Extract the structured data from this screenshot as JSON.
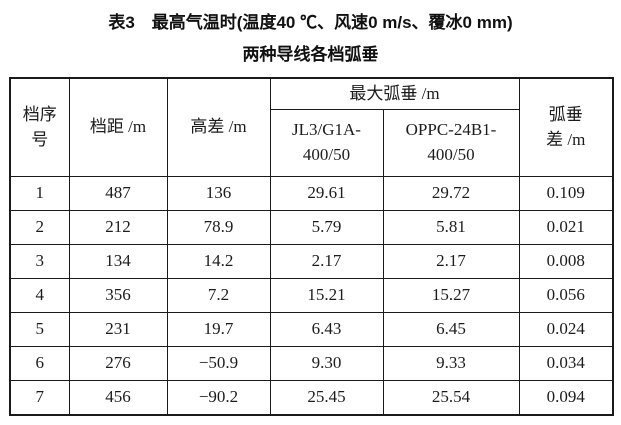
{
  "page": {
    "background": "#ffffff",
    "text_color": "#1c1c1c",
    "border_color": "#1a1a1a"
  },
  "title": {
    "line1": "表3　最高气温时(温度40 ℃、风速0 m/s、覆冰0 mm)",
    "line2": "两种导线各档弧垂"
  },
  "table": {
    "header": {
      "span_no_line1": "档序",
      "span_no_line2": "号",
      "span_length": "档距 /m",
      "height_diff": "高差 /m",
      "max_sag": "最大弧垂 /m",
      "conductor1_line1": "JL3/G1A-",
      "conductor1_line2": "400/50",
      "conductor2_line1": "OPPC-24B1-",
      "conductor2_line2": "400/50",
      "sag_diff_line1": "弧垂",
      "sag_diff_line2": "差 /m"
    },
    "rows": [
      [
        "1",
        "487",
        "136",
        "29.61",
        "29.72",
        "0.109"
      ],
      [
        "2",
        "212",
        "78.9",
        "5.79",
        "5.81",
        "0.021"
      ],
      [
        "3",
        "134",
        "14.2",
        "2.17",
        "2.17",
        "0.008"
      ],
      [
        "4",
        "356",
        "7.2",
        "15.21",
        "15.27",
        "0.056"
      ],
      [
        "5",
        "231",
        "19.7",
        "6.43",
        "6.45",
        "0.024"
      ],
      [
        "6",
        "276",
        "−50.9",
        "9.30",
        "9.33",
        "0.034"
      ],
      [
        "7",
        "456",
        "−90.2",
        "25.45",
        "25.54",
        "0.094"
      ]
    ]
  }
}
